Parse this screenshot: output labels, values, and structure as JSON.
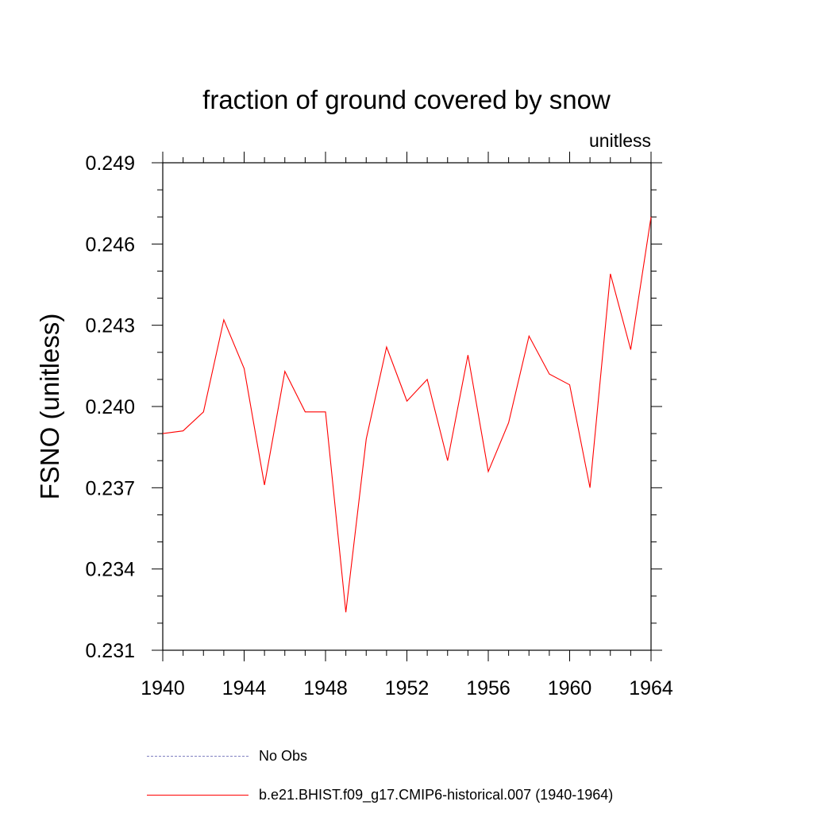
{
  "chart_data": {
    "type": "line",
    "title": "fraction of ground covered by snow",
    "units_label": "unitless",
    "ylabel": "FSNO  (unitless)",
    "xlabel": "",
    "xlim": [
      1940,
      1964
    ],
    "ylim": [
      0.231,
      0.249
    ],
    "x_ticks": [
      1940,
      1944,
      1948,
      1952,
      1956,
      1960,
      1964
    ],
    "y_ticks": [
      "0.231",
      "0.234",
      "0.237",
      "0.240",
      "0.243",
      "0.246",
      "0.249"
    ],
    "grid": false,
    "series": [
      {
        "name": "b.e21.BHIST.f09_g17.CMIP6-historical.007 (1940-1964)",
        "color": "#ff0000",
        "style": "solid",
        "x": [
          1940,
          1941,
          1942,
          1943,
          1944,
          1945,
          1946,
          1947,
          1948,
          1949,
          1950,
          1951,
          1952,
          1953,
          1954,
          1955,
          1956,
          1957,
          1958,
          1959,
          1960,
          1961,
          1962,
          1963,
          1964
        ],
        "y": [
          0.239,
          0.2391,
          0.2398,
          0.2432,
          0.2414,
          0.2371,
          0.2413,
          0.2398,
          0.2398,
          0.2324,
          0.2388,
          0.2422,
          0.2402,
          0.241,
          0.238,
          0.2419,
          0.2376,
          0.2394,
          0.2426,
          0.2412,
          0.2408,
          0.237,
          0.2449,
          0.2421,
          0.247
        ]
      }
    ]
  },
  "legend": {
    "items": [
      {
        "label": "No Obs",
        "style": "dashed",
        "color": "#8080c0"
      },
      {
        "label": "b.e21.BHIST.f09_g17.CMIP6-historical.007 (1940-1964)",
        "style": "solid",
        "color": "#ff0000"
      }
    ]
  }
}
